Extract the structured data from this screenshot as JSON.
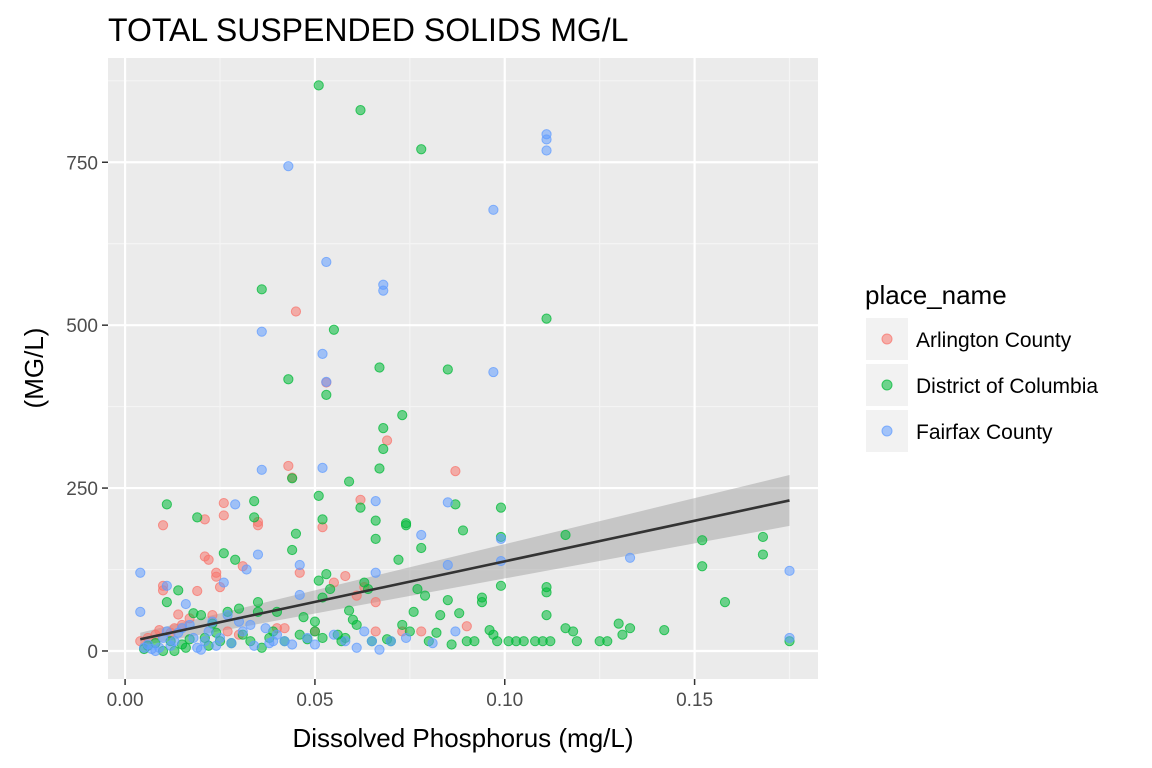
{
  "chart_data": {
    "type": "scatter",
    "title": "TOTAL SUSPENDED SOLIDS MG/L",
    "xlabel": "Dissolved Phosphorus (mg/L)",
    "ylabel": "(MG/L)",
    "xlim": [
      -0.0045,
      0.1825
    ],
    "ylim": [
      -43,
      910
    ],
    "x_ticks": [
      0.0,
      0.05,
      0.1,
      0.15
    ],
    "x_tick_labels": [
      "0.00",
      "0.05",
      "0.10",
      "0.15"
    ],
    "y_ticks": [
      0,
      250,
      500,
      750
    ],
    "y_tick_labels": [
      "0",
      "250",
      "500",
      "750"
    ],
    "grid": true,
    "legend": {
      "title": "place_name",
      "placement": "right"
    },
    "series": [
      {
        "name": "Arlington County",
        "color": "#F8766D",
        "points": [
          [
            0.004,
            15
          ],
          [
            0.006,
            20
          ],
          [
            0.008,
            25
          ],
          [
            0.009,
            32
          ],
          [
            0.01,
            100
          ],
          [
            0.01,
            93
          ],
          [
            0.01,
            193
          ],
          [
            0.012,
            28
          ],
          [
            0.013,
            35
          ],
          [
            0.014,
            56
          ],
          [
            0.015,
            40
          ],
          [
            0.017,
            50
          ],
          [
            0.019,
            92
          ],
          [
            0.021,
            145
          ],
          [
            0.021,
            202
          ],
          [
            0.022,
            140
          ],
          [
            0.023,
            55
          ],
          [
            0.024,
            120
          ],
          [
            0.024,
            114
          ],
          [
            0.025,
            98
          ],
          [
            0.026,
            227
          ],
          [
            0.026,
            208
          ],
          [
            0.027,
            30
          ],
          [
            0.03,
            25
          ],
          [
            0.031,
            130
          ],
          [
            0.035,
            193
          ],
          [
            0.035,
            198
          ],
          [
            0.04,
            35
          ],
          [
            0.042,
            35
          ],
          [
            0.043,
            284
          ],
          [
            0.044,
            266
          ],
          [
            0.045,
            521
          ],
          [
            0.046,
            120
          ],
          [
            0.05,
            30
          ],
          [
            0.052,
            190
          ],
          [
            0.053,
            412
          ],
          [
            0.055,
            105
          ],
          [
            0.058,
            115
          ],
          [
            0.061,
            85
          ],
          [
            0.062,
            232
          ],
          [
            0.063,
            98
          ],
          [
            0.066,
            30
          ],
          [
            0.066,
            75
          ],
          [
            0.069,
            323
          ],
          [
            0.073,
            30
          ],
          [
            0.078,
            30
          ],
          [
            0.087,
            276
          ],
          [
            0.09,
            38
          ]
        ]
      },
      {
        "name": "District of Columbia",
        "color": "#00BA38",
        "points": [
          [
            0.005,
            3
          ],
          [
            0.006,
            8
          ],
          [
            0.008,
            12
          ],
          [
            0.01,
            0
          ],
          [
            0.011,
            75
          ],
          [
            0.011,
            225
          ],
          [
            0.012,
            15
          ],
          [
            0.013,
            0
          ],
          [
            0.014,
            93
          ],
          [
            0.015,
            10
          ],
          [
            0.016,
            5
          ],
          [
            0.017,
            18
          ],
          [
            0.018,
            58
          ],
          [
            0.019,
            205
          ],
          [
            0.02,
            55
          ],
          [
            0.021,
            20
          ],
          [
            0.022,
            8
          ],
          [
            0.023,
            42
          ],
          [
            0.024,
            28
          ],
          [
            0.025,
            15
          ],
          [
            0.026,
            150
          ],
          [
            0.027,
            60
          ],
          [
            0.028,
            12
          ],
          [
            0.029,
            140
          ],
          [
            0.03,
            65
          ],
          [
            0.031,
            25
          ],
          [
            0.033,
            15
          ],
          [
            0.034,
            230
          ],
          [
            0.034,
            205
          ],
          [
            0.035,
            75
          ],
          [
            0.035,
            60
          ],
          [
            0.036,
            555
          ],
          [
            0.036,
            5
          ],
          [
            0.038,
            20
          ],
          [
            0.039,
            30
          ],
          [
            0.04,
            60
          ],
          [
            0.042,
            15
          ],
          [
            0.043,
            417
          ],
          [
            0.044,
            155
          ],
          [
            0.044,
            265
          ],
          [
            0.045,
            180
          ],
          [
            0.046,
            25
          ],
          [
            0.047,
            52
          ],
          [
            0.048,
            18
          ],
          [
            0.05,
            45
          ],
          [
            0.05,
            30
          ],
          [
            0.051,
            868
          ],
          [
            0.051,
            238
          ],
          [
            0.051,
            108
          ],
          [
            0.052,
            202
          ],
          [
            0.052,
            82
          ],
          [
            0.052,
            20
          ],
          [
            0.053,
            118
          ],
          [
            0.053,
            393
          ],
          [
            0.054,
            95
          ],
          [
            0.055,
            493
          ],
          [
            0.056,
            25
          ],
          [
            0.057,
            15
          ],
          [
            0.058,
            20
          ],
          [
            0.059,
            260
          ],
          [
            0.059,
            62
          ],
          [
            0.06,
            48
          ],
          [
            0.061,
            40
          ],
          [
            0.062,
            830
          ],
          [
            0.062,
            220
          ],
          [
            0.063,
            105
          ],
          [
            0.064,
            95
          ],
          [
            0.065,
            15
          ],
          [
            0.066,
            200
          ],
          [
            0.066,
            172
          ],
          [
            0.067,
            280
          ],
          [
            0.067,
            435
          ],
          [
            0.068,
            342
          ],
          [
            0.068,
            310
          ],
          [
            0.069,
            18
          ],
          [
            0.07,
            15
          ],
          [
            0.072,
            140
          ],
          [
            0.073,
            362
          ],
          [
            0.073,
            40
          ],
          [
            0.074,
            193
          ],
          [
            0.074,
            196
          ],
          [
            0.075,
            30
          ],
          [
            0.076,
            60
          ],
          [
            0.077,
            95
          ],
          [
            0.078,
            158
          ],
          [
            0.078,
            770
          ],
          [
            0.079,
            85
          ],
          [
            0.08,
            15
          ],
          [
            0.082,
            28
          ],
          [
            0.083,
            55
          ],
          [
            0.085,
            432
          ],
          [
            0.085,
            78
          ],
          [
            0.086,
            10
          ],
          [
            0.087,
            225
          ],
          [
            0.088,
            58
          ],
          [
            0.089,
            185
          ],
          [
            0.09,
            15
          ],
          [
            0.092,
            15
          ],
          [
            0.094,
            82
          ],
          [
            0.094,
            75
          ],
          [
            0.096,
            32
          ],
          [
            0.097,
            25
          ],
          [
            0.098,
            15
          ],
          [
            0.099,
            100
          ],
          [
            0.099,
            220
          ],
          [
            0.099,
            175
          ],
          [
            0.101,
            15
          ],
          [
            0.103,
            15
          ],
          [
            0.105,
            15
          ],
          [
            0.108,
            15
          ],
          [
            0.11,
            15
          ],
          [
            0.111,
            510
          ],
          [
            0.111,
            98
          ],
          [
            0.111,
            90
          ],
          [
            0.111,
            55
          ],
          [
            0.112,
            15
          ],
          [
            0.116,
            35
          ],
          [
            0.116,
            178
          ],
          [
            0.118,
            30
          ],
          [
            0.119,
            15
          ],
          [
            0.125,
            15
          ],
          [
            0.127,
            15
          ],
          [
            0.13,
            42
          ],
          [
            0.131,
            25
          ],
          [
            0.133,
            35
          ],
          [
            0.142,
            32
          ],
          [
            0.152,
            130
          ],
          [
            0.152,
            170
          ],
          [
            0.158,
            75
          ],
          [
            0.168,
            175
          ],
          [
            0.168,
            148
          ],
          [
            0.175,
            15
          ]
        ]
      },
      {
        "name": "Fairfax County",
        "color": "#619CFF",
        "points": [
          [
            0.004,
            120
          ],
          [
            0.004,
            60
          ],
          [
            0.005,
            5
          ],
          [
            0.006,
            10
          ],
          [
            0.007,
            3
          ],
          [
            0.008,
            0
          ],
          [
            0.009,
            5
          ],
          [
            0.01,
            20
          ],
          [
            0.011,
            100
          ],
          [
            0.011,
            30
          ],
          [
            0.012,
            8
          ],
          [
            0.013,
            15
          ],
          [
            0.014,
            28
          ],
          [
            0.015,
            35
          ],
          [
            0.016,
            72
          ],
          [
            0.017,
            40
          ],
          [
            0.018,
            20
          ],
          [
            0.019,
            5
          ],
          [
            0.02,
            2
          ],
          [
            0.021,
            15
          ],
          [
            0.022,
            30
          ],
          [
            0.023,
            45
          ],
          [
            0.024,
            8
          ],
          [
            0.025,
            20
          ],
          [
            0.026,
            105
          ],
          [
            0.027,
            55
          ],
          [
            0.028,
            12
          ],
          [
            0.029,
            225
          ],
          [
            0.03,
            45
          ],
          [
            0.031,
            30
          ],
          [
            0.032,
            125
          ],
          [
            0.033,
            40
          ],
          [
            0.034,
            8
          ],
          [
            0.035,
            148
          ],
          [
            0.036,
            490
          ],
          [
            0.036,
            278
          ],
          [
            0.037,
            35
          ],
          [
            0.038,
            12
          ],
          [
            0.039,
            15
          ],
          [
            0.04,
            25
          ],
          [
            0.042,
            15
          ],
          [
            0.043,
            744
          ],
          [
            0.044,
            10
          ],
          [
            0.046,
            86
          ],
          [
            0.046,
            132
          ],
          [
            0.048,
            20
          ],
          [
            0.05,
            10
          ],
          [
            0.052,
            456
          ],
          [
            0.052,
            281
          ],
          [
            0.053,
            597
          ],
          [
            0.053,
            413
          ],
          [
            0.055,
            25
          ],
          [
            0.058,
            15
          ],
          [
            0.061,
            5
          ],
          [
            0.063,
            30
          ],
          [
            0.065,
            15
          ],
          [
            0.066,
            230
          ],
          [
            0.066,
            120
          ],
          [
            0.067,
            2
          ],
          [
            0.068,
            562
          ],
          [
            0.068,
            553
          ],
          [
            0.07,
            15
          ],
          [
            0.074,
            20
          ],
          [
            0.078,
            178
          ],
          [
            0.081,
            12
          ],
          [
            0.085,
            228
          ],
          [
            0.085,
            132
          ],
          [
            0.087,
            30
          ],
          [
            0.097,
            677
          ],
          [
            0.097,
            428
          ],
          [
            0.099,
            172
          ],
          [
            0.099,
            138
          ],
          [
            0.111,
            793
          ],
          [
            0.111,
            785
          ],
          [
            0.111,
            768
          ],
          [
            0.133,
            143
          ],
          [
            0.175,
            123
          ],
          [
            0.175,
            20
          ]
        ]
      }
    ],
    "trendline": {
      "type": "linear",
      "x": [
        0.004,
        0.175
      ],
      "y": [
        18,
        231
      ],
      "ci_lower": [
        8,
        192
      ],
      "ci_upper": [
        28,
        270
      ],
      "color": "#333333",
      "band_color": "#999999"
    }
  }
}
